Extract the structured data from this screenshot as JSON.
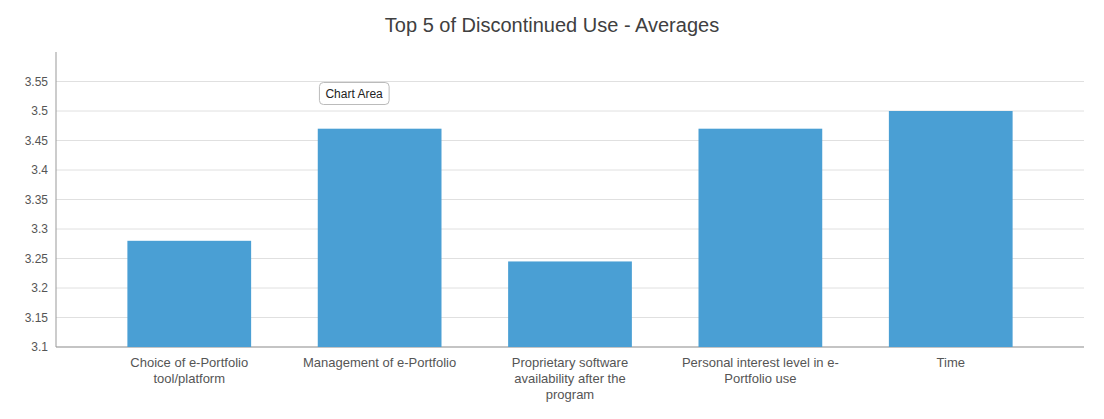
{
  "chart_data": {
    "type": "bar",
    "title": "Top 5 of Discontinued Use - Averages",
    "categories": [
      "Choice of e-Portfolio\ntool/platform",
      "Management of e-Portfolio",
      "Proprietary software\navailability after the\nprogram",
      "Personal interest level in e-\nPortfolio use",
      "Time"
    ],
    "values": [
      3.28,
      3.47,
      3.245,
      3.47,
      3.5
    ],
    "color": "#4a9fd4",
    "ylim": [
      3.1,
      3.6
    ],
    "yticks": [
      3.1,
      3.15,
      3.2,
      3.25,
      3.3,
      3.35,
      3.4,
      3.45,
      3.5,
      3.55
    ],
    "grid": true,
    "annotations": [
      "Chart Area"
    ]
  }
}
